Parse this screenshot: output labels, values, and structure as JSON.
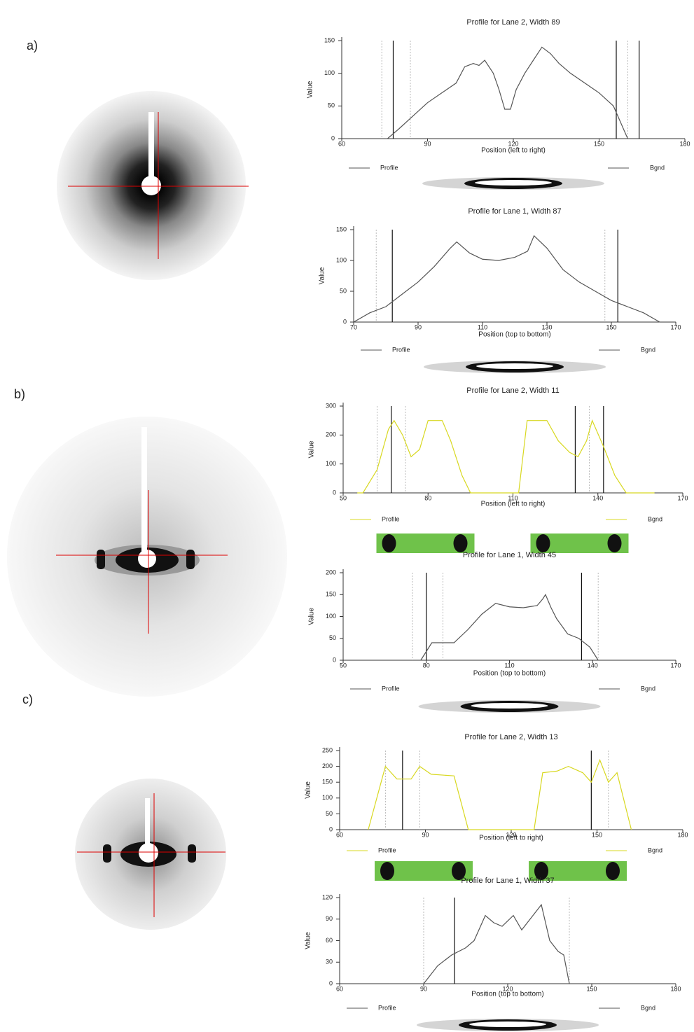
{
  "panels": [
    "a)",
    "b)",
    "c)"
  ],
  "chart_data": [
    {
      "type": "line",
      "title": "Profile for Lane 2, Width 89",
      "xlabel": "Position (left to right)",
      "ylabel": "Value",
      "x": [
        76,
        80,
        85,
        90,
        95,
        100,
        103,
        106,
        108,
        110,
        113,
        115,
        117,
        119,
        121,
        124,
        127,
        130,
        133,
        136,
        140,
        145,
        150,
        155,
        160
      ],
      "series": [
        {
          "color": "#555555",
          "values": [
            0,
            15,
            35,
            55,
            70,
            85,
            110,
            115,
            112,
            120,
            100,
            75,
            45,
            45,
            75,
            100,
            120,
            140,
            130,
            115,
            100,
            85,
            70,
            50,
            0
          ]
        }
      ],
      "legend": [
        "Profile",
        "Bgnd"
      ],
      "markers": [
        74,
        78,
        84,
        156,
        160,
        164
      ],
      "xlim": [
        60,
        180
      ],
      "xticks": [
        60,
        90,
        120,
        150,
        180
      ],
      "ylim": [
        0,
        150
      ],
      "yticks": [
        0,
        50,
        100,
        150
      ]
    },
    {
      "type": "line",
      "title": "Profile for Lane 1, Width 87",
      "xlabel": "Position (top to bottom)",
      "ylabel": "Value",
      "x": [
        70,
        75,
        80,
        85,
        90,
        95,
        100,
        102,
        106,
        110,
        115,
        120,
        124,
        126,
        130,
        135,
        140,
        145,
        150,
        155,
        160,
        165
      ],
      "series": [
        {
          "color": "#555555",
          "values": [
            0,
            15,
            25,
            45,
            65,
            90,
            120,
            130,
            112,
            102,
            100,
            105,
            115,
            140,
            120,
            85,
            65,
            50,
            35,
            25,
            15,
            0
          ]
        }
      ],
      "legend": [
        "Profile",
        "Bgnd"
      ],
      "markers": [
        77,
        82,
        148,
        152
      ],
      "xlim": [
        70,
        170
      ],
      "xticks": [
        70,
        90,
        110,
        130,
        150,
        170
      ],
      "ylim": [
        0,
        150
      ],
      "yticks": [
        0,
        50,
        100,
        150
      ]
    },
    {
      "type": "line",
      "title": "Profile for Lane 2, Width 11",
      "xlabel": "Position (left to right)",
      "ylabel": "Value",
      "x": [
        55,
        57,
        62,
        66,
        68,
        71,
        74,
        77,
        80,
        85,
        88,
        92,
        95,
        105,
        112,
        115,
        122,
        126,
        130,
        133,
        136,
        138,
        142,
        146,
        150,
        160
      ],
      "series": [
        {
          "color": "#d8d820",
          "values": [
            0,
            0,
            80,
            220,
            250,
            200,
            125,
            150,
            250,
            250,
            180,
            60,
            0,
            0,
            0,
            250,
            250,
            180,
            140,
            125,
            180,
            250,
            160,
            60,
            0,
            0
          ]
        }
      ],
      "legend": [
        "Profile",
        "Bgnd"
      ],
      "markers": [
        62,
        67,
        72,
        132,
        137,
        142
      ],
      "xlim": [
        50,
        170
      ],
      "xticks": [
        50,
        80,
        110,
        140,
        170
      ],
      "ylim": [
        0,
        300
      ],
      "yticks": [
        0,
        100,
        200,
        300
      ]
    },
    {
      "type": "line",
      "title": "Profile for Lane 1, Width 45",
      "xlabel": "Position (top to bottom)",
      "ylabel": "Value",
      "x": [
        78,
        82,
        90,
        95,
        100,
        105,
        110,
        115,
        120,
        122,
        123,
        125,
        127,
        131,
        135,
        139,
        142
      ],
      "series": [
        {
          "color": "#555555",
          "values": [
            0,
            40,
            40,
            70,
            105,
            130,
            122,
            120,
            125,
            140,
            150,
            120,
            95,
            60,
            50,
            30,
            0
          ]
        }
      ],
      "legend": [
        "Profile",
        "Bgnd"
      ],
      "markers": [
        75,
        80,
        86,
        136,
        142
      ],
      "xlim": [
        50,
        170
      ],
      "xticks": [
        50,
        80,
        110,
        140,
        170
      ],
      "ylim": [
        0,
        200
      ],
      "yticks": [
        0,
        50,
        100,
        150,
        200
      ]
    },
    {
      "type": "line",
      "title": "Profile for Lane 2, Width 13",
      "xlabel": "Position (left to right)",
      "ylabel": "Value",
      "x": [
        70,
        76,
        80,
        85,
        88,
        92,
        100,
        105,
        128,
        131,
        136,
        140,
        145,
        148,
        151,
        154,
        157,
        162
      ],
      "series": [
        {
          "color": "#d8d820",
          "values": [
            0,
            200,
            160,
            160,
            200,
            175,
            170,
            0,
            0,
            180,
            185,
            200,
            180,
            150,
            220,
            150,
            180,
            0
          ]
        }
      ],
      "legend": [
        "Profile",
        "Bgnd"
      ],
      "markers": [
        76,
        82,
        88,
        148,
        154
      ],
      "xlim": [
        60,
        180
      ],
      "xticks": [
        60,
        90,
        120,
        150,
        180
      ],
      "ylim": [
        0,
        250
      ],
      "yticks": [
        0,
        50,
        100,
        150,
        200,
        250
      ]
    },
    {
      "type": "line",
      "title": "Profile for Lane 1, Width 37",
      "xlabel": "Position (top to bottom)",
      "ylabel": "Value",
      "x": [
        90,
        95,
        100,
        105,
        108,
        112,
        115,
        118,
        122,
        125,
        128,
        130,
        132,
        135,
        138,
        140,
        142
      ],
      "series": [
        {
          "color": "#555555",
          "values": [
            0,
            25,
            40,
            50,
            60,
            95,
            85,
            80,
            95,
            75,
            90,
            100,
            110,
            60,
            45,
            40,
            0
          ]
        }
      ],
      "legend": [
        "Profile",
        "Bgnd"
      ],
      "markers": [
        90,
        101,
        142
      ],
      "xlim": [
        60,
        180
      ],
      "xticks": [
        60,
        90,
        120,
        150,
        180
      ],
      "ylim": [
        0,
        120
      ],
      "yticks": [
        0,
        30,
        60,
        90,
        120
      ]
    }
  ]
}
